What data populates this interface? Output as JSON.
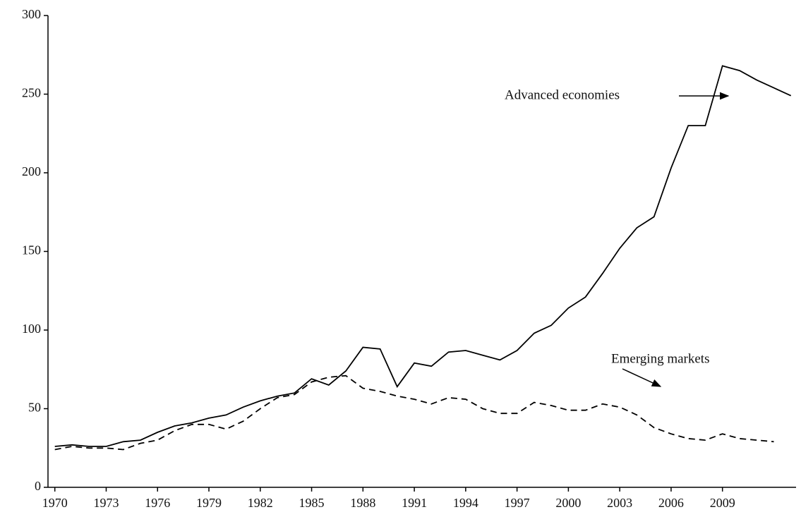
{
  "chart_data": {
    "type": "line",
    "x": [
      1970,
      1971,
      1972,
      1973,
      1974,
      1975,
      1976,
      1977,
      1978,
      1979,
      1980,
      1981,
      1982,
      1983,
      1984,
      1985,
      1986,
      1987,
      1988,
      1989,
      1990,
      1991,
      1992,
      1993,
      1994,
      1995,
      1996,
      1997,
      1998,
      1999,
      2000,
      2001,
      2002,
      2003,
      2004,
      2005,
      2006,
      2007,
      2008,
      2009,
      2010,
      2011,
      2012,
      2013
    ],
    "series": [
      {
        "name": "Advanced economies",
        "color": "#000000",
        "dash": false,
        "values": [
          26,
          27,
          26,
          26,
          29,
          30,
          35,
          39,
          41,
          44,
          46,
          51,
          55,
          58,
          60,
          69,
          65,
          74,
          89,
          88,
          64,
          79,
          77,
          86,
          87,
          84,
          81,
          87,
          98,
          103,
          114,
          121,
          136,
          152,
          165,
          172,
          203,
          230,
          230,
          268,
          265,
          259,
          254,
          249
        ]
      },
      {
        "name": "Emerging markets",
        "color": "#000000",
        "dash": true,
        "values": [
          24,
          26,
          25,
          25,
          24,
          28,
          30,
          36,
          40,
          40,
          37,
          42,
          50,
          57,
          59,
          67,
          70,
          71,
          63,
          61,
          58,
          56,
          53,
          57,
          56,
          50,
          47,
          47,
          54,
          52,
          49,
          49,
          53,
          51,
          46,
          38,
          34,
          31,
          30,
          34,
          31,
          30,
          29,
          null
        ]
      }
    ],
    "xlim": [
      1969.6,
      2013.3
    ],
    "ylim": [
      0,
      300
    ],
    "xticks": [
      1970,
      1973,
      1976,
      1979,
      1982,
      1985,
      1988,
      1991,
      1994,
      1997,
      2000,
      2003,
      2006,
      2009
    ],
    "yticks": [
      0,
      50,
      100,
      150,
      200,
      250,
      300
    ]
  }
}
